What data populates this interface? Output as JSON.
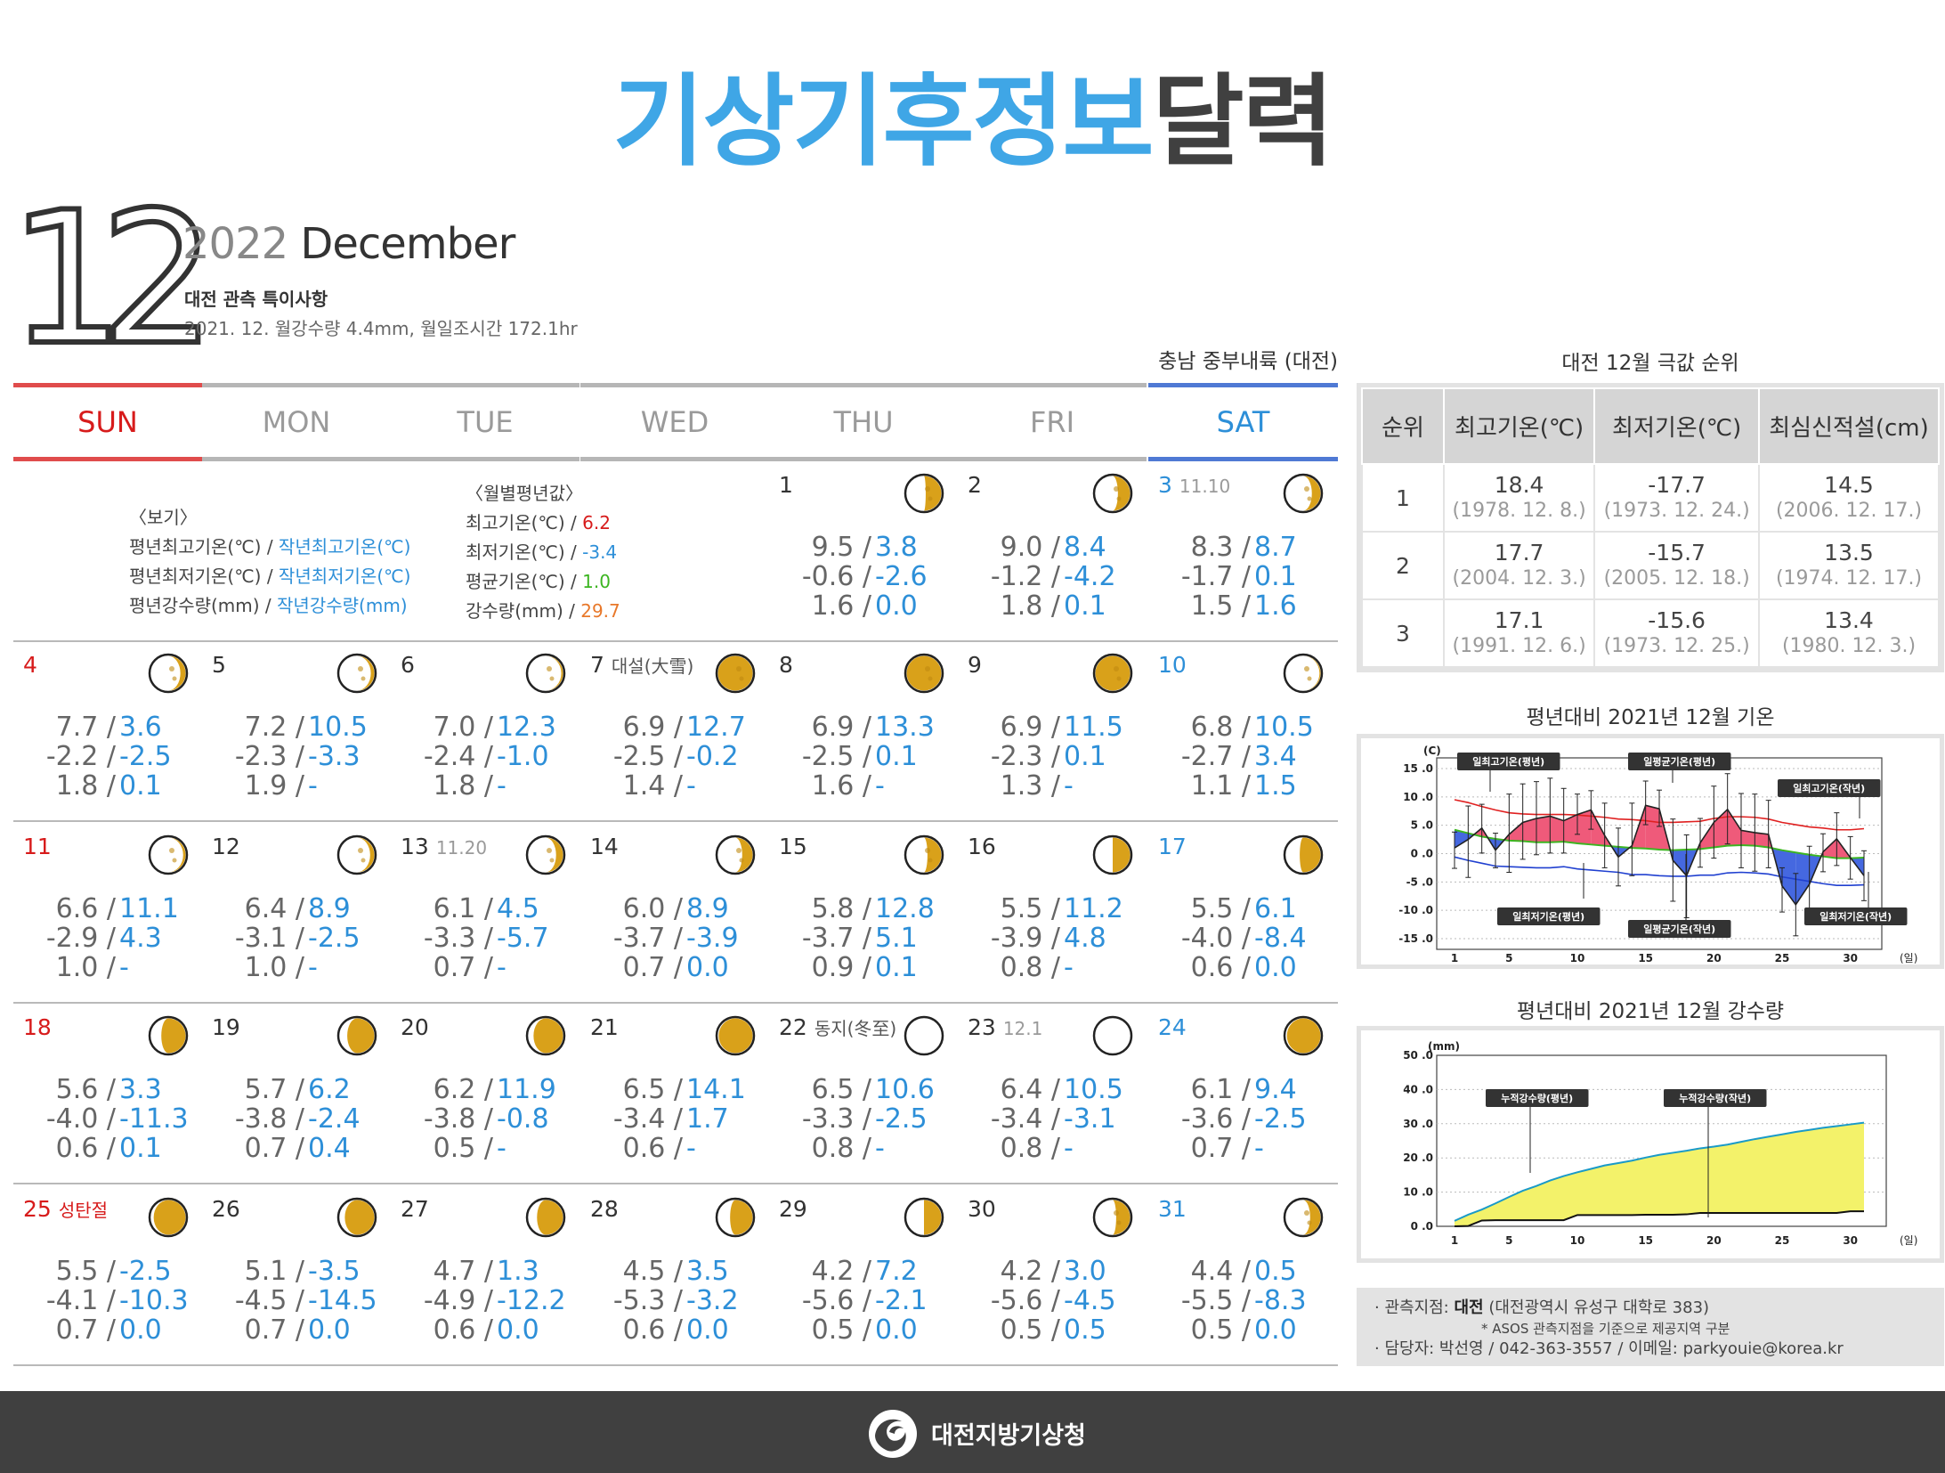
{
  "title_blue": "기상기후정보",
  "title_dark": "달력",
  "month_num": "12",
  "year": "2022",
  "month_name": "December",
  "subtitle": "대전 관측 특이사항",
  "note": "2021. 12. 월강수량 4.4mm, 월일조시간 172.1hr",
  "region": "충남 중부내륙 (대전)",
  "days": [
    "SUN",
    "MON",
    "TUE",
    "WED",
    "THU",
    "FRI",
    "SAT"
  ],
  "legend": {
    "title": "〈보기〉",
    "l1a": "평년최고기온(℃) / ",
    "l1b": "작년최고기온(℃)",
    "l2a": "평년최저기온(℃) / ",
    "l2b": "작년최저기온(℃)",
    "l3a": "평년강수량(mm) / ",
    "l3b": "작년강수량(mm)"
  },
  "monthly_normal": {
    "title": "〈월별평년값〉",
    "max_label": "최고기온(℃) / ",
    "max": "6.2",
    "min_label": "최저기온(℃) / ",
    "min": "-3.4",
    "avg_label": "평균기온(℃) / ",
    "avg": "1.0",
    "rain_label": "강수량(mm) / ",
    "rain": "29.7"
  },
  "calendar": [
    {
      "col": 4,
      "day": "1",
      "moon": 0.55,
      "v": [
        [
          "9.5 /",
          "3.8"
        ],
        [
          "-0.6 /",
          "-2.6"
        ],
        [
          "1.6 /",
          "0.0"
        ]
      ]
    },
    {
      "col": 5,
      "day": "2",
      "moon": 0.65,
      "v": [
        [
          "9.0 /",
          "8.4"
        ],
        [
          "-1.2 /",
          "-4.2"
        ],
        [
          "1.8 /",
          "0.1"
        ]
      ]
    },
    {
      "col": 6,
      "day": "3",
      "lunar": "11.10",
      "moon": 0.75,
      "v": [
        [
          "8.3 /",
          "8.7"
        ],
        [
          "-1.7 /",
          "0.1"
        ],
        [
          "1.5 /",
          "1.6"
        ]
      ]
    },
    {
      "col": 0,
      "day": "4",
      "moon": 0.85,
      "v": [
        [
          "7.7 /",
          "3.6"
        ],
        [
          "-2.2 /",
          "-2.5"
        ],
        [
          "1.8 /",
          "0.1"
        ]
      ]
    },
    {
      "col": 1,
      "day": "5",
      "moon": 0.9,
      "v": [
        [
          "7.2 /",
          "10.5"
        ],
        [
          "-2.3 /",
          "-3.3"
        ],
        [
          "1.9 /",
          "-"
        ]
      ]
    },
    {
      "col": 2,
      "day": "6",
      "moon": 0.95,
      "v": [
        [
          "7.0 /",
          "12.3"
        ],
        [
          "-2.4 /",
          "-1.0"
        ],
        [
          "1.8 /",
          "-"
        ]
      ]
    },
    {
      "col": 3,
      "day": "7",
      "note": "대설(大雪)",
      "moon": 1.0,
      "v": [
        [
          "6.9 /",
          "12.7"
        ],
        [
          "-2.5 /",
          "-0.2"
        ],
        [
          "1.4 /",
          "-"
        ]
      ]
    },
    {
      "col": 4,
      "day": "8",
      "moon": 1.0,
      "v": [
        [
          "6.9 /",
          "13.3"
        ],
        [
          "-2.5 /",
          "0.1"
        ],
        [
          "1.6 /",
          "-"
        ]
      ]
    },
    {
      "col": 5,
      "day": "9",
      "moon": 1.0,
      "v": [
        [
          "6.9 /",
          "11.5"
        ],
        [
          "-2.3 /",
          "0.1"
        ],
        [
          "1.3 /",
          "-"
        ]
      ]
    },
    {
      "col": 6,
      "day": "10",
      "moon": 0.97,
      "v": [
        [
          "6.8 /",
          "10.5"
        ],
        [
          "-2.7 /",
          "3.4"
        ],
        [
          "1.1 /",
          "1.5"
        ]
      ]
    },
    {
      "col": 0,
      "day": "11",
      "moon": 0.93,
      "v": [
        [
          "6.6 /",
          "11.1"
        ],
        [
          "-2.9 /",
          "4.3"
        ],
        [
          "1.0 /",
          "-"
        ]
      ]
    },
    {
      "col": 1,
      "day": "12",
      "moon": 0.88,
      "v": [
        [
          "6.4 /",
          "8.9"
        ],
        [
          "-3.1 /",
          "-2.5"
        ],
        [
          "1.0 /",
          "-"
        ]
      ]
    },
    {
      "col": 2,
      "day": "13",
      "lunar": "11.20",
      "moon": 0.8,
      "v": [
        [
          "6.1 /",
          "4.5"
        ],
        [
          "-3.3 /",
          "-5.7"
        ],
        [
          "0.7 /",
          "-"
        ]
      ]
    },
    {
      "col": 3,
      "day": "14",
      "moon": 0.7,
      "v": [
        [
          "6.0 /",
          "8.9"
        ],
        [
          "-3.7 /",
          "-3.9"
        ],
        [
          "0.7 /",
          "0.0"
        ]
      ]
    },
    {
      "col": 4,
      "day": "15",
      "moon": 0.6,
      "v": [
        [
          "5.8 /",
          "12.8"
        ],
        [
          "-3.7 /",
          "5.1"
        ],
        [
          "0.9 /",
          "0.1"
        ]
      ]
    },
    {
      "col": 5,
      "day": "16",
      "moon": 0.5,
      "v": [
        [
          "5.5 /",
          "11.2"
        ],
        [
          "-3.9 /",
          "4.8"
        ],
        [
          "0.8 /",
          "-"
        ]
      ]
    },
    {
      "col": 6,
      "day": "17",
      "moon": 0.4,
      "v": [
        [
          "5.5 /",
          "6.1"
        ],
        [
          "-4.0 /",
          "-8.4"
        ],
        [
          "0.6 /",
          "0.0"
        ]
      ]
    },
    {
      "col": 0,
      "day": "18",
      "moon": 0.3,
      "v": [
        [
          "5.6 /",
          "3.3"
        ],
        [
          "-4.0 /",
          "-11.3"
        ],
        [
          "0.6 /",
          "0.1"
        ]
      ]
    },
    {
      "col": 1,
      "day": "19",
      "moon": 0.22,
      "v": [
        [
          "5.7 /",
          "6.2"
        ],
        [
          "-3.8 /",
          "-2.4"
        ],
        [
          "0.7 /",
          "0.4"
        ]
      ]
    },
    {
      "col": 2,
      "day": "20",
      "moon": 0.15,
      "v": [
        [
          "6.2 /",
          "11.9"
        ],
        [
          "-3.8 /",
          "-0.8"
        ],
        [
          "0.5 /",
          "-"
        ]
      ]
    },
    {
      "col": 3,
      "day": "21",
      "moon": 0.02,
      "v": [
        [
          "6.5 /",
          "14.1"
        ],
        [
          "-3.4 /",
          "1.7"
        ],
        [
          "0.6 /",
          "-"
        ]
      ]
    },
    {
      "col": 4,
      "day": "22",
      "note": "동지(冬至)",
      "moon": 0.0,
      "v": [
        [
          "6.5 /",
          "10.6"
        ],
        [
          "-3.3 /",
          "-2.5"
        ],
        [
          "0.8 /",
          "-"
        ]
      ]
    },
    {
      "col": 5,
      "day": "23",
      "lunar": "12.1",
      "moon": 0.0,
      "v": [
        [
          "6.4 /",
          "10.5"
        ],
        [
          "-3.4 /",
          "-3.1"
        ],
        [
          "0.8 /",
          "-"
        ]
      ]
    },
    {
      "col": 6,
      "day": "24",
      "moon": 0.03,
      "v": [
        [
          "6.1 /",
          "9.4"
        ],
        [
          "-3.6 /",
          "-2.5"
        ],
        [
          "0.7 /",
          "-"
        ]
      ]
    },
    {
      "col": 0,
      "day": "25",
      "note": "성탄절",
      "moon": 0.08,
      "v": [
        [
          "5.5 /",
          "-2.5"
        ],
        [
          "-4.1 /",
          "-10.3"
        ],
        [
          "0.7 /",
          "0.0"
        ]
      ]
    },
    {
      "col": 1,
      "day": "26",
      "moon": 0.15,
      "v": [
        [
          "5.1 /",
          "-3.5"
        ],
        [
          "-4.5 /",
          "-14.5"
        ],
        [
          "0.7 /",
          "0.0"
        ]
      ]
    },
    {
      "col": 2,
      "day": "27",
      "moon": 0.25,
      "v": [
        [
          "4.7 /",
          "1.3"
        ],
        [
          "-4.9 /",
          "-12.2"
        ],
        [
          "0.6 /",
          "0.0"
        ]
      ]
    },
    {
      "col": 3,
      "day": "28",
      "moon": 0.35,
      "v": [
        [
          "4.5 /",
          "3.5"
        ],
        [
          "-5.3 /",
          "-3.2"
        ],
        [
          "0.6 /",
          "0.0"
        ]
      ]
    },
    {
      "col": 4,
      "day": "29",
      "moon": 0.5,
      "v": [
        [
          "4.2 /",
          "7.2"
        ],
        [
          "-5.6 /",
          "-2.1"
        ],
        [
          "0.5 /",
          "0.0"
        ]
      ]
    },
    {
      "col": 5,
      "day": "30",
      "moon": 0.6,
      "v": [
        [
          "4.2 /",
          "3.0"
        ],
        [
          "-5.6 /",
          "-4.5"
        ],
        [
          "0.5 /",
          "0.5"
        ]
      ]
    },
    {
      "col": 6,
      "day": "31",
      "moon": 0.7,
      "v": [
        [
          "4.4 /",
          "0.5"
        ],
        [
          "-5.5 /",
          "-8.3"
        ],
        [
          "0.5 /",
          "0.0"
        ]
      ]
    }
  ],
  "rank": {
    "title": "대전 12월 극값 순위",
    "headers": [
      "순위",
      "최고기온(℃)",
      "최저기온(℃)",
      "최심신적설(cm)"
    ],
    "rows": [
      {
        "rank": "1",
        "max": "18.4",
        "max_d": "(1978. 12. 8.)",
        "min": "-17.7",
        "min_d": "(1973. 12. 24.)",
        "snow": "14.5",
        "snow_d": "(2006. 12. 17.)"
      },
      {
        "rank": "2",
        "max": "17.7",
        "max_d": "(2004. 12. 3.)",
        "min": "-15.7",
        "min_d": "(2005. 12. 18.)",
        "snow": "13.5",
        "snow_d": "(1974. 12. 17.)"
      },
      {
        "rank": "3",
        "max": "17.1",
        "max_d": "(1991. 12. 6.)",
        "min": "-15.6",
        "min_d": "(1973. 12. 25.)",
        "snow": "13.4",
        "snow_d": "(1980. 12. 3.)"
      }
    ]
  },
  "temp_chart": {
    "title": "평년대비 2021년 12월 기온",
    "unit": "(C)",
    "xunit": "(일)",
    "labels": {
      "nmax": "일최고기온(평년)",
      "navg": "일평균기온(평년)",
      "lmax": "일최고기온(작년)",
      "nmin": "일최저기온(평년)",
      "lavg": "일평균기온(작년)",
      "lmin": "일최저기온(작년)"
    }
  },
  "rain_chart": {
    "title": "평년대비 2021년 12월 강수량",
    "unit": "(mm)",
    "xunit": "(일)",
    "labels": {
      "normal": "누적강수량(평년)",
      "last": "누적강수량(작년)"
    }
  },
  "chart_data": [
    {
      "type": "line",
      "title": "평년대비 2021년 12월 기온",
      "ylabel": "(C)",
      "xlabel": "(일)",
      "ylim": [
        -15,
        15
      ],
      "yticks": [
        "15 .0",
        "10 .0",
        "5 .0",
        "0 .0",
        "-5 .0",
        "-10 .0",
        "-15 .0"
      ],
      "xticks": [
        "1",
        "5",
        "10",
        "15",
        "20",
        "25",
        "30"
      ],
      "x": [
        1,
        2,
        3,
        4,
        5,
        6,
        7,
        8,
        9,
        10,
        11,
        12,
        13,
        14,
        15,
        16,
        17,
        18,
        19,
        20,
        21,
        22,
        23,
        24,
        25,
        26,
        27,
        28,
        29,
        30,
        31
      ],
      "series": [
        {
          "name": "일최고기온(평년)",
          "values": [
            9.5,
            9.0,
            8.3,
            7.7,
            7.2,
            7.0,
            6.9,
            6.9,
            6.9,
            6.8,
            6.6,
            6.4,
            6.1,
            6.0,
            5.8,
            5.5,
            5.5,
            5.6,
            5.7,
            6.2,
            6.5,
            6.5,
            6.4,
            6.1,
            5.5,
            5.1,
            4.7,
            4.5,
            4.2,
            4.2,
            4.4
          ]
        },
        {
          "name": "일최저기온(평년)",
          "values": [
            -0.6,
            -1.2,
            -1.7,
            -2.2,
            -2.3,
            -2.4,
            -2.5,
            -2.5,
            -2.3,
            -2.7,
            -2.9,
            -3.1,
            -3.3,
            -3.7,
            -3.7,
            -3.9,
            -4.0,
            -4.0,
            -3.8,
            -3.8,
            -3.4,
            -3.3,
            -3.4,
            -3.6,
            -4.1,
            -4.5,
            -4.9,
            -5.3,
            -5.6,
            -5.6,
            -5.5
          ]
        },
        {
          "name": "일평균기온(평년)",
          "values": [
            4.2,
            3.6,
            3.0,
            2.6,
            2.3,
            2.2,
            2.0,
            2.0,
            2.1,
            1.8,
            1.6,
            1.4,
            1.2,
            1.0,
            0.9,
            0.7,
            0.6,
            0.7,
            0.8,
            1.1,
            1.4,
            1.5,
            1.4,
            1.1,
            0.6,
            0.2,
            -0.2,
            -0.5,
            -0.8,
            -0.8,
            -0.7
          ]
        },
        {
          "name": "일평균기온(작년)",
          "values": [
            1.0,
            2.5,
            4.5,
            0.6,
            3.4,
            5.5,
            6.2,
            6.6,
            5.8,
            6.9,
            7.7,
            3.2,
            -0.6,
            1.4,
            8.5,
            7.9,
            -1.2,
            -3.9,
            1.9,
            5.5,
            7.8,
            4.1,
            3.7,
            3.4,
            -5.7,
            -9.0,
            -5.4,
            0.3,
            2.6,
            -0.7,
            -3.9
          ]
        },
        {
          "name": "일최고기온(작년)",
          "values": [
            3.8,
            8.4,
            8.7,
            3.6,
            10.5,
            12.3,
            12.7,
            13.3,
            11.5,
            10.5,
            11.1,
            8.9,
            4.5,
            8.9,
            12.8,
            11.2,
            6.1,
            3.3,
            6.2,
            11.9,
            14.1,
            10.6,
            10.5,
            9.4,
            -2.5,
            -3.5,
            1.3,
            3.5,
            7.2,
            3.0,
            0.5
          ]
        },
        {
          "name": "일최저기온(작년)",
          "values": [
            -2.6,
            -4.2,
            0.1,
            -2.5,
            -3.3,
            -1.0,
            -0.2,
            0.1,
            0.1,
            3.4,
            4.3,
            -2.5,
            -5.7,
            -3.9,
            5.1,
            4.8,
            -8.4,
            -11.3,
            -2.4,
            -0.8,
            1.7,
            -2.5,
            -3.1,
            -2.5,
            -10.3,
            -14.5,
            -12.2,
            -3.2,
            -2.1,
            -4.5,
            -8.3
          ]
        }
      ]
    },
    {
      "type": "area",
      "title": "평년대비 2021년 12월 강수량",
      "ylabel": "(mm)",
      "xlabel": "(일)",
      "ylim": [
        0,
        50
      ],
      "yticks": [
        "50 .0",
        "40 .0",
        "30 .0",
        "20 .0",
        "10 .0",
        "0 .0"
      ],
      "xticks": [
        "1",
        "5",
        "10",
        "15",
        "20",
        "25",
        "30"
      ],
      "x": [
        1,
        2,
        3,
        4,
        5,
        6,
        7,
        8,
        9,
        10,
        11,
        12,
        13,
        14,
        15,
        16,
        17,
        18,
        19,
        20,
        21,
        22,
        23,
        24,
        25,
        26,
        27,
        28,
        29,
        30,
        31
      ],
      "series": [
        {
          "name": "누적강수량(평년)",
          "values": [
            1.6,
            3.4,
            4.9,
            6.7,
            8.6,
            10.4,
            11.8,
            13.4,
            14.7,
            15.8,
            16.8,
            17.8,
            18.5,
            19.2,
            20.1,
            20.9,
            21.5,
            22.1,
            22.8,
            23.3,
            23.9,
            24.7,
            25.5,
            26.2,
            26.9,
            27.6,
            28.2,
            28.8,
            29.3,
            29.8,
            30.3
          ]
        },
        {
          "name": "누적강수량(작년)",
          "values": [
            0.0,
            0.1,
            1.7,
            1.8,
            1.8,
            1.8,
            1.8,
            1.8,
            1.8,
            3.3,
            3.3,
            3.3,
            3.3,
            3.3,
            3.4,
            3.4,
            3.4,
            3.5,
            3.9,
            3.9,
            3.9,
            3.9,
            3.9,
            3.9,
            3.9,
            3.9,
            3.9,
            3.9,
            3.9,
            4.4,
            4.4
          ]
        }
      ]
    }
  ],
  "info": {
    "line1_prefix": "· 관측지점: ",
    "line1_bold": "대전",
    "line1_rest": " (대전광역시 유성구 대학로 383)",
    "line2": "* ASOS 관측지점을 기준으로 제공지역 구분",
    "line3": "· 담당자: 박선영  /  042-363-3557  /  이메일: parkyouie@korea.kr"
  },
  "footer": "대전지방기상청",
  "colors": {
    "title_blue": "#3fa6e6",
    "value_blue": "#2d8fd8",
    "sun_red": "#d71b1b",
    "moon_gold": "#d9a11a",
    "rain_fill": "#f3f26a",
    "warm_fill": "#ef5a7a",
    "cold_fill": "#4568e0"
  }
}
